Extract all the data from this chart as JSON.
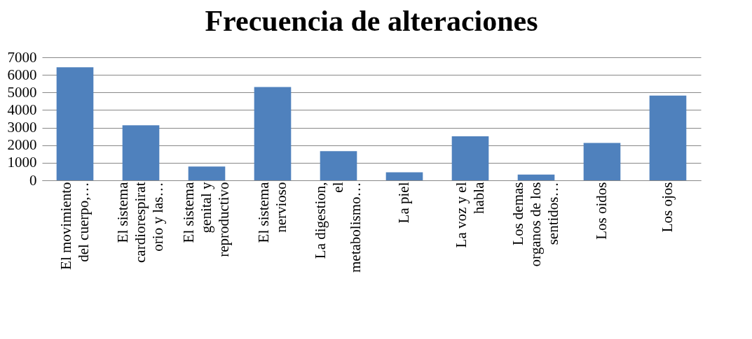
{
  "chart_data": {
    "type": "bar",
    "title": "Frecuencia de alteraciones",
    "categories": [
      "El movimiento del cuerpo,…",
      "El sistema cardiorespiratorio y las…",
      "El sistema genital y reproductivo",
      "El sistema nervioso",
      "La digestion, el metabolismo…",
      "La piel",
      "La voz y el habla",
      "Los demas organos de los sentidos…",
      "Los oidos",
      "Los ojos"
    ],
    "values": [
      6430,
      3130,
      790,
      5310,
      1660,
      460,
      2510,
      330,
      2130,
      4820
    ],
    "color": "#4f81bd",
    "ylim": [
      0,
      7000
    ],
    "yticks": [
      0,
      1000,
      2000,
      3000,
      4000,
      5000,
      6000,
      7000
    ],
    "grid": "y"
  }
}
